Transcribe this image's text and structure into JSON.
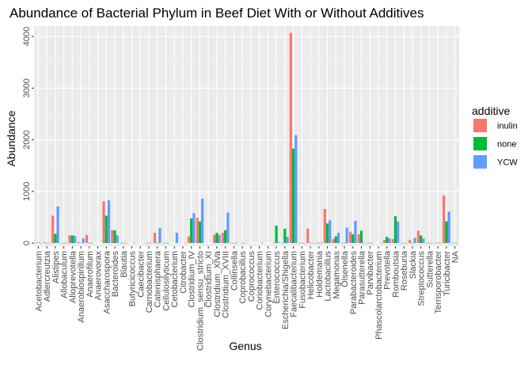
{
  "chart_data": {
    "type": "bar",
    "title": "Abundance of Bacterial Phylum in Beef Diet With or Without Additives",
    "xlabel": "Genus",
    "ylabel": "Abundance",
    "ylim": [
      -60,
      4200
    ],
    "yticks": [
      0,
      1000,
      2000,
      3000,
      4000
    ],
    "grid": true,
    "legend": {
      "title": "additive",
      "position": "right"
    },
    "categories": [
      "Acetobacterium",
      "Adlercreutzia",
      "Alistipes",
      "Allobaculum",
      "Alloprevotella",
      "Anaerobiospirillum",
      "Anaerofilum",
      "Anaerovorax",
      "Asaccharospora",
      "Bacteroides",
      "Blautia",
      "Butyricicoccus",
      "Caecibacter",
      "Carnobacterium",
      "Catenisphaera",
      "Cellulosilyticum",
      "Cetobacterium",
      "Citrobacter",
      "Clostridium_IV",
      "Clostridium_sensu_stricto",
      "Clostridium_XI",
      "Clostridium_XlVa",
      "Clostridium_XVIII",
      "Collinsella",
      "Coprobacillus",
      "Coprococcus",
      "Coriobacterium",
      "Corynebacterium",
      "Enterococcus",
      "Escherichia/Shigella",
      "Faecalibacterium",
      "Fusobacterium",
      "Helicobacter",
      "Holdemania",
      "Lactobacillus",
      "Megamonas",
      "Olsenella",
      "Parabacteroides",
      "Parasutterella",
      "Parvibacter",
      "Phascolarctobacterium",
      "Prevotella",
      "Romboutsia",
      "Roseburia",
      "Slackia",
      "Streptococcus",
      "Sutterella",
      "Terrisporobacter",
      "Turicibacter",
      "NA"
    ],
    "series": [
      {
        "name": "inulin",
        "color": "#F8766D",
        "values": [
          10,
          15,
          530,
          5,
          150,
          20,
          160,
          0,
          810,
          250,
          5,
          0,
          0,
          5,
          200,
          5,
          0,
          0,
          130,
          490,
          0,
          160,
          200,
          5,
          0,
          0,
          0,
          0,
          5,
          5,
          4070,
          5,
          280,
          5,
          660,
          80,
          5,
          220,
          170,
          5,
          0,
          60,
          80,
          5,
          60,
          240,
          5,
          5,
          920,
          5
        ]
      },
      {
        "name": "none",
        "color": "#00BA38",
        "values": [
          10,
          5,
          180,
          5,
          150,
          5,
          5,
          0,
          530,
          250,
          5,
          0,
          0,
          5,
          5,
          5,
          0,
          0,
          480,
          420,
          0,
          200,
          250,
          5,
          5,
          0,
          0,
          0,
          340,
          280,
          1830,
          5,
          5,
          5,
          380,
          130,
          5,
          170,
          240,
          5,
          0,
          120,
          520,
          5,
          5,
          150,
          5,
          5,
          420,
          5
        ]
      },
      {
        "name": "YCW",
        "color": "#619CFF",
        "values": [
          5,
          5,
          710,
          5,
          140,
          90,
          5,
          0,
          830,
          150,
          5,
          5,
          0,
          10,
          290,
          5,
          200,
          5,
          580,
          860,
          0,
          160,
          590,
          10,
          5,
          0,
          10,
          0,
          10,
          120,
          2090,
          5,
          5,
          5,
          440,
          200,
          300,
          430,
          5,
          5,
          5,
          90,
          420,
          5,
          100,
          90,
          5,
          5,
          610,
          5
        ]
      }
    ]
  }
}
